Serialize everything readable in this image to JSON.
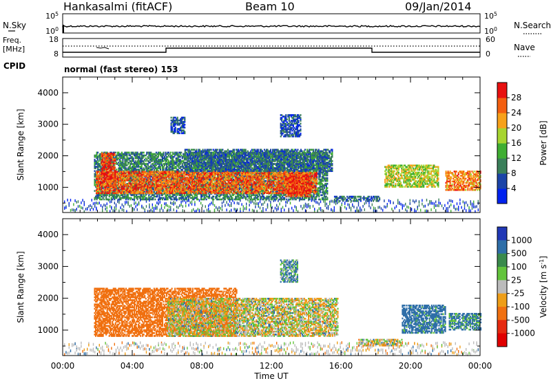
{
  "header": {
    "site": "Hankasalmi (fitACF)",
    "beam": "Beam 10",
    "date": "09/Jan/2014"
  },
  "nsky_panel": {
    "left_label": "N.Sky",
    "right_label": "N.Search",
    "left_ticks": [
      "10^5",
      "10^0"
    ],
    "right_ticks": [
      "10^5",
      "10^0"
    ]
  },
  "freq_panel": {
    "left_label_1": "Freq.",
    "left_label_2": "[MHz]",
    "right_label": "Nave",
    "left_ticks": [
      "18",
      "8"
    ],
    "right_ticks": [
      "60",
      "0"
    ]
  },
  "cpid": {
    "label": "CPID",
    "text": "normal (fast stereo) 153"
  },
  "colors": {
    "power": [
      "#0022ee",
      "#1b44a8",
      "#3a7f5a",
      "#3fae32",
      "#a7d530",
      "#f7a11a",
      "#f35f10",
      "#e81010"
    ],
    "velocity": [
      "#2138b6",
      "#2e6ea8",
      "#3a8a4c",
      "#63c43c",
      "#bbbbbb",
      "#ee9e18",
      "#f07010",
      "#e62a10",
      "#e00000"
    ]
  },
  "chart_data": [
    {
      "type": "heatmap",
      "title": "",
      "xlabel": "",
      "ylabel": "Slant Range [km]",
      "ylim": [
        200,
        4500
      ],
      "y_ticks": [
        "1000",
        "2000",
        "3000",
        "4000"
      ],
      "x_ticks": [
        "00:00",
        "04:00",
        "08:00",
        "12:00",
        "16:00",
        "20:00",
        "00:00"
      ],
      "xlim_hours": [
        0,
        24
      ],
      "colorbar": {
        "label": "Power [dB]",
        "ticks": [
          "4",
          "8",
          "12",
          "16",
          "20",
          "24",
          "28"
        ],
        "range": [
          0,
          32
        ]
      },
      "regions": [
        {
          "t": [
            1.8,
            15.2
          ],
          "r": [
            600,
            2100
          ],
          "value": 10
        },
        {
          "t": [
            1.9,
            14.6
          ],
          "r": [
            800,
            1500
          ],
          "value": 26
        },
        {
          "t": [
            2.2,
            3.0
          ],
          "r": [
            1200,
            2100
          ],
          "value": 28
        },
        {
          "t": [
            12.8,
            14.2
          ],
          "r": [
            700,
            1400
          ],
          "value": 28
        },
        {
          "t": [
            7.0,
            15.5
          ],
          "r": [
            1500,
            2200
          ],
          "value": 8
        },
        {
          "t": [
            12.5,
            13.7
          ],
          "r": [
            2600,
            3300
          ],
          "value": 6
        },
        {
          "t": [
            6.2,
            7.0
          ],
          "r": [
            2700,
            3200
          ],
          "value": 6
        },
        {
          "t": [
            15.6,
            18.2
          ],
          "r": [
            550,
            700
          ],
          "value": 8
        },
        {
          "t": [
            18.5,
            21.6
          ],
          "r": [
            1000,
            1700
          ],
          "value": 18
        },
        {
          "t": [
            22.0,
            24.0
          ],
          "r": [
            900,
            1500
          ],
          "value": 24
        }
      ]
    },
    {
      "type": "heatmap",
      "title": "",
      "xlabel": "Time UT",
      "ylabel": "Slant Range [km]",
      "ylim": [
        200,
        4500
      ],
      "y_ticks": [
        "1000",
        "2000",
        "3000",
        "4000"
      ],
      "x_ticks": [
        "00:00",
        "04:00",
        "08:00",
        "12:00",
        "16:00",
        "20:00",
        "00:00"
      ],
      "xlim_hours": [
        0,
        24
      ],
      "colorbar": {
        "label": "Velocity [m s^-1]",
        "ticks": [
          "1000",
          "500",
          "100",
          "25",
          "-25",
          "-100",
          "-500",
          "-1000"
        ]
      },
      "regions": [
        {
          "t": [
            1.8,
            10.0
          ],
          "r": [
            800,
            2300
          ],
          "value": -300
        },
        {
          "t": [
            6.0,
            15.8
          ],
          "r": [
            800,
            2000
          ],
          "value": 0
        },
        {
          "t": [
            12.5,
            13.5
          ],
          "r": [
            2500,
            3200
          ],
          "value": 100
        },
        {
          "t": [
            17.0,
            19.5
          ],
          "r": [
            500,
            700
          ],
          "value": 0
        },
        {
          "t": [
            19.5,
            22.0
          ],
          "r": [
            900,
            1800
          ],
          "value": 200
        },
        {
          "t": [
            22.2,
            24.0
          ],
          "r": [
            1000,
            1500
          ],
          "value": 150
        }
      ]
    }
  ]
}
